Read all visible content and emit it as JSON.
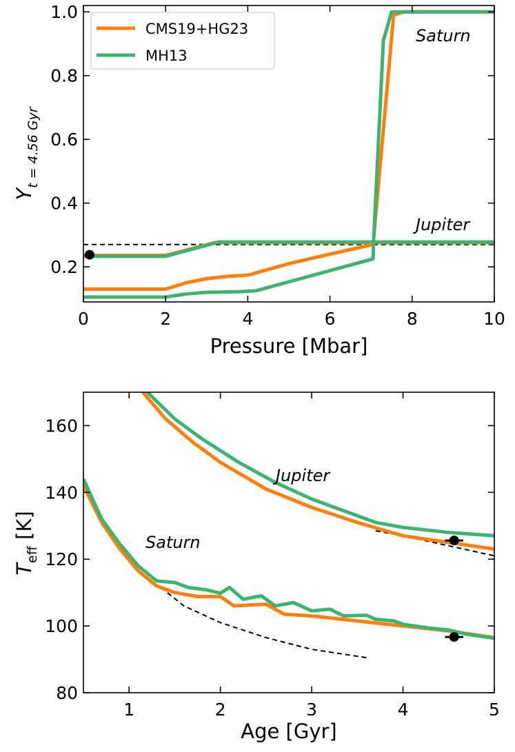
{
  "colors": {
    "cms": "#ff7f0e",
    "mh": "#3cb371",
    "ref": "#000000"
  },
  "chart_data": [
    {
      "type": "line",
      "title": "",
      "xlabel": "Pressure [Mbar]",
      "ylabel": {
        "main": "Y",
        "sub": "t = 4.56 Gyr"
      },
      "xlim": [
        0,
        10
      ],
      "ylim": [
        0.09,
        1.02
      ],
      "xticks": [
        "0",
        "2",
        "4",
        "6",
        "8",
        "10"
      ],
      "yticks": [
        "0.2",
        "0.4",
        "0.6",
        "0.8",
        "1.0"
      ],
      "legend": {
        "position": "top-left",
        "entries": [
          "CMS19+HG23",
          "MH13"
        ]
      },
      "annotations": [
        "Saturn",
        "Jupiter"
      ],
      "series": [
        {
          "name": "CMS19+HG23 Jupiter",
          "color": "cms",
          "points": [
            [
              0,
              0.236
            ],
            [
              2,
              0.236
            ],
            [
              3.2,
              0.276
            ],
            [
              10,
              0.276
            ]
          ]
        },
        {
          "name": "MH13 Jupiter",
          "color": "mh",
          "points": [
            [
              0,
              0.233
            ],
            [
              2,
              0.233
            ],
            [
              3.3,
              0.278
            ],
            [
              10,
              0.278
            ]
          ]
        },
        {
          "name": "CMS19+HG23 Saturn",
          "color": "cms",
          "points": [
            [
              0,
              0.13
            ],
            [
              2,
              0.13
            ],
            [
              2.5,
              0.15
            ],
            [
              3,
              0.163
            ],
            [
              3.5,
              0.17
            ],
            [
              4,
              0.174
            ],
            [
              5,
              0.21
            ],
            [
              6,
              0.24
            ],
            [
              7.05,
              0.27
            ],
            [
              7.55,
              0.99
            ],
            [
              7.8,
              1.0
            ],
            [
              10,
              1.0
            ]
          ]
        },
        {
          "name": "MH13 Saturn",
          "color": "mh",
          "points": [
            [
              0,
              0.105
            ],
            [
              2,
              0.105
            ],
            [
              2.5,
              0.115
            ],
            [
              3,
              0.12
            ],
            [
              3.8,
              0.122
            ],
            [
              4.2,
              0.125
            ],
            [
              7.05,
              0.225
            ],
            [
              7.06,
              0.275
            ],
            [
              7.3,
              0.91
            ],
            [
              7.5,
              1.0
            ],
            [
              10,
              1.0
            ]
          ]
        },
        {
          "name": "Reference (dashed)",
          "color": "ref",
          "dashed": true,
          "points": [
            [
              0,
              0.27
            ],
            [
              10,
              0.27
            ]
          ]
        },
        {
          "name": "Observed",
          "color": "ref",
          "marker": true,
          "points": [
            [
              0.15,
              0.238
            ]
          ]
        }
      ]
    },
    {
      "type": "line",
      "title": "",
      "xlabel": "Age [Gyr]",
      "ylabel": {
        "main": "T",
        "sub": "eff",
        "unit": " [K]"
      },
      "xlim": [
        0.5,
        5
      ],
      "ylim": [
        80,
        170
      ],
      "xticks": [
        "1",
        "2",
        "3",
        "4",
        "5"
      ],
      "yticks": [
        "80",
        "100",
        "120",
        "140",
        "160"
      ],
      "annotations": [
        "Jupiter",
        "Saturn"
      ],
      "series": [
        {
          "name": "CMS19+HG23 Jupiter",
          "color": "cms",
          "points": [
            [
              1.15,
              170
            ],
            [
              1.4,
              162
            ],
            [
              1.7,
              155
            ],
            [
              2,
              149
            ],
            [
              2.5,
              141
            ],
            [
              3,
              135.5
            ],
            [
              3.5,
              131
            ],
            [
              4,
              127
            ],
            [
              4.5,
              125
            ],
            [
              5,
              123
            ]
          ]
        },
        {
          "name": "MH13 Jupiter",
          "color": "mh",
          "points": [
            [
              1.2,
              170
            ],
            [
              1.5,
              162
            ],
            [
              1.8,
              156
            ],
            [
              2.2,
              149
            ],
            [
              2.6,
              143
            ],
            [
              3,
              138
            ],
            [
              3.3,
              135
            ],
            [
              3.7,
              131
            ],
            [
              4,
              129.5
            ],
            [
              4.5,
              128
            ],
            [
              5,
              127
            ]
          ]
        },
        {
          "name": "Jupiter reference (dashed)",
          "color": "ref",
          "dashed": true,
          "points": [
            [
              3.7,
              128.5
            ],
            [
              4,
              127
            ],
            [
              4.5,
              124
            ],
            [
              5,
              121
            ]
          ]
        },
        {
          "name": "CMS19+HG23 Saturn",
          "color": "cms",
          "points": [
            [
              0.5,
              142
            ],
            [
              0.7,
              131
            ],
            [
              0.9,
              123
            ],
            [
              1.1,
              116.5
            ],
            [
              1.3,
              112
            ],
            [
              1.5,
              110
            ],
            [
              1.75,
              108.8
            ],
            [
              2,
              108.8
            ],
            [
              2.15,
              106
            ],
            [
              2.5,
              106.5
            ],
            [
              2.7,
              103.5
            ],
            [
              3,
              103
            ],
            [
              3.5,
              101.5
            ],
            [
              4,
              100
            ],
            [
              4.5,
              98.5
            ],
            [
              5,
              96.5
            ]
          ]
        },
        {
          "name": "MH13 Saturn",
          "color": "mh",
          "points": [
            [
              0.5,
              144
            ],
            [
              0.7,
              132
            ],
            [
              0.9,
              124.5
            ],
            [
              1.1,
              118
            ],
            [
              1.3,
              113.5
            ],
            [
              1.5,
              113
            ],
            [
              1.65,
              111.5
            ],
            [
              1.85,
              110.8
            ],
            [
              2,
              109.8
            ],
            [
              2.1,
              111.5
            ],
            [
              2.25,
              108
            ],
            [
              2.45,
              109
            ],
            [
              2.6,
              106
            ],
            [
              2.8,
              107
            ],
            [
              3,
              104.5
            ],
            [
              3.2,
              105
            ],
            [
              3.35,
              103
            ],
            [
              3.6,
              103.2
            ],
            [
              3.7,
              102
            ],
            [
              3.9,
              101.5
            ],
            [
              4,
              100.5
            ],
            [
              4.3,
              99.3
            ],
            [
              4.5,
              98.8
            ],
            [
              4.7,
              97.5
            ],
            [
              5,
              96.3
            ]
          ]
        },
        {
          "name": "Saturn reference (dashed)",
          "color": "ref",
          "dashed": true,
          "points": [
            [
              1.35,
              111.5
            ],
            [
              1.6,
              106
            ],
            [
              2,
              101
            ],
            [
              2.5,
              96.5
            ],
            [
              3,
              93
            ],
            [
              3.6,
              90.5
            ]
          ]
        },
        {
          "name": "Jupiter observed",
          "color": "ref",
          "marker": true,
          "xerr": 0.1,
          "points": [
            [
              4.56,
              125.6
            ]
          ]
        },
        {
          "name": "Saturn observed",
          "color": "ref",
          "marker": true,
          "xerr": 0.1,
          "points": [
            [
              4.56,
              96.7
            ]
          ]
        }
      ]
    }
  ]
}
